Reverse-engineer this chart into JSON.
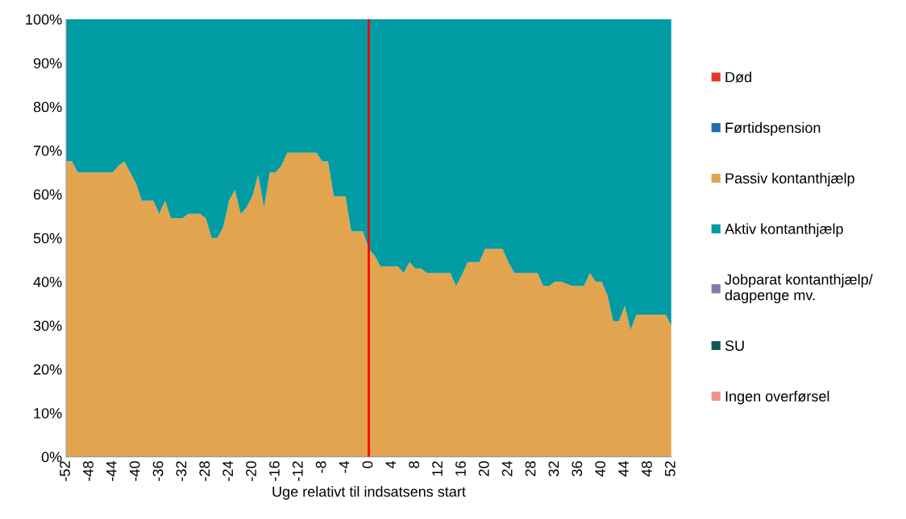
{
  "chart_data": {
    "type": "area",
    "stacked": true,
    "xlabel": "Uge relativt til indsatsens start",
    "x": [
      -52,
      -51,
      -50,
      -49,
      -48,
      -47,
      -46,
      -45,
      -44,
      -43,
      -42,
      -41,
      -40,
      -39,
      -38,
      -37,
      -36,
      -35,
      -34,
      -33,
      -32,
      -31,
      -30,
      -29,
      -28,
      -27,
      -26,
      -25,
      -24,
      -23,
      -22,
      -21,
      -20,
      -19,
      -18,
      -17,
      -16,
      -15,
      -14,
      -13,
      -12,
      -11,
      -10,
      -9,
      -8,
      -7,
      -6,
      -5,
      -4,
      -3,
      -2,
      -1,
      0,
      1,
      2,
      3,
      4,
      5,
      6,
      7,
      8,
      9,
      10,
      11,
      12,
      13,
      14,
      15,
      16,
      17,
      18,
      19,
      20,
      21,
      22,
      23,
      24,
      25,
      26,
      27,
      28,
      29,
      30,
      31,
      32,
      33,
      34,
      35,
      36,
      37,
      38,
      39,
      40,
      41,
      42,
      43,
      44,
      45,
      46,
      47,
      48,
      49,
      50,
      51,
      52
    ],
    "xlim": [
      -52,
      52
    ],
    "xticks": [
      -52,
      -48,
      -44,
      -40,
      -36,
      -32,
      -28,
      -24,
      -20,
      -16,
      -12,
      -8,
      -4,
      0,
      4,
      8,
      12,
      16,
      20,
      24,
      28,
      32,
      36,
      40,
      44,
      48,
      52
    ],
    "ylim": [
      0,
      100
    ],
    "yticks": [
      {
        "value": 0,
        "label": "0%"
      },
      {
        "value": 10,
        "label": "10%"
      },
      {
        "value": 20,
        "label": "20%"
      },
      {
        "value": 30,
        "label": "30%"
      },
      {
        "value": 40,
        "label": "40%"
      },
      {
        "value": 50,
        "label": "50%"
      },
      {
        "value": 60,
        "label": "60%"
      },
      {
        "value": 70,
        "label": "70%"
      },
      {
        "value": 80,
        "label": "80%"
      },
      {
        "value": 90,
        "label": "90%"
      },
      {
        "value": 100,
        "label": "100%"
      }
    ],
    "grid": false,
    "legend": "right",
    "ref_lines": [
      {
        "axis": "x",
        "value": 0,
        "color": "#ff0000"
      }
    ],
    "series": [
      {
        "name": "Død",
        "color": "#e8382b",
        "values": [
          null,
          null,
          null,
          null,
          null,
          null,
          null,
          null,
          null,
          null,
          null,
          null,
          null,
          null,
          null,
          null,
          null,
          null,
          null,
          null,
          null,
          null,
          null,
          null,
          null,
          null,
          null,
          null,
          null,
          null,
          null,
          null,
          null,
          null,
          null,
          null,
          null,
          null,
          null,
          null,
          null,
          null,
          null,
          null,
          null,
          null,
          null,
          null,
          null,
          null,
          null,
          null,
          null,
          null,
          null,
          null,
          null,
          null,
          null,
          null,
          null,
          null,
          null,
          null,
          null,
          null,
          null,
          null,
          null,
          null,
          null,
          null,
          null,
          null,
          null,
          null,
          null,
          null,
          null,
          null,
          null,
          null,
          null,
          null,
          null,
          null,
          null,
          null,
          null,
          null,
          null,
          null,
          null,
          null,
          null,
          null,
          null,
          null,
          null,
          null,
          null,
          null,
          null,
          null,
          null
        ]
      },
      {
        "name": "Førtidspension",
        "color": "#1f6eb5",
        "values": [
          null,
          null,
          null,
          null,
          null,
          null,
          null,
          null,
          null,
          null,
          null,
          null,
          null,
          null,
          null,
          null,
          null,
          null,
          null,
          null,
          null,
          null,
          null,
          null,
          null,
          null,
          null,
          null,
          null,
          null,
          null,
          null,
          null,
          null,
          null,
          null,
          null,
          null,
          null,
          null,
          null,
          null,
          null,
          null,
          null,
          null,
          null,
          null,
          null,
          null,
          null,
          null,
          null,
          null,
          null,
          null,
          null,
          null,
          null,
          null,
          null,
          null,
          null,
          null,
          null,
          null,
          null,
          null,
          null,
          null,
          null,
          null,
          null,
          null,
          null,
          null,
          null,
          null,
          null,
          null,
          null,
          null,
          null,
          null,
          null,
          null,
          null,
          null,
          null,
          null,
          null,
          null,
          null,
          null,
          null,
          null,
          null,
          null,
          null,
          null,
          null,
          null,
          null,
          null,
          null
        ]
      },
      {
        "name": "Passiv kontanthjælp",
        "color": "#e2a44e",
        "values": [
          67.5,
          67.5,
          65,
          65,
          65,
          65,
          65,
          65,
          65,
          66.5,
          67.5,
          65,
          62.5,
          58.5,
          58.5,
          58.5,
          55.5,
          58.5,
          54.5,
          54.5,
          54.5,
          55.5,
          55.5,
          55.5,
          54.5,
          50,
          50,
          52.5,
          58.5,
          61,
          55.5,
          57,
          59.5,
          64.5,
          57,
          65,
          65,
          66.5,
          69.5,
          69.5,
          69.5,
          69.5,
          69.5,
          69.5,
          67.5,
          67.5,
          59.5,
          59.5,
          59.5,
          51.5,
          51.5,
          51.5,
          47.5,
          46,
          43.5,
          43.5,
          43.5,
          43.5,
          42,
          44.5,
          43,
          43,
          42,
          42,
          42,
          42,
          42,
          39,
          41.5,
          44.5,
          44.5,
          44.5,
          47.5,
          47.5,
          47.5,
          47.5,
          44.5,
          42,
          42,
          42,
          42,
          42,
          39,
          39,
          40,
          40,
          39.5,
          39,
          39,
          39,
          42,
          40,
          40,
          37,
          31,
          31,
          34.5,
          29,
          32.5,
          32.5,
          32.5,
          32.5,
          32.5,
          32.5,
          30
        ]
      },
      {
        "name": "Aktiv kontanthjælp",
        "color": "#009ba3",
        "values": [
          32.5,
          32.5,
          35,
          35,
          35,
          35,
          35,
          35,
          35,
          33.5,
          32.5,
          35,
          37.5,
          41.5,
          41.5,
          41.5,
          44.5,
          41.5,
          45.5,
          45.5,
          45.5,
          44.5,
          44.5,
          44.5,
          45.5,
          50,
          50,
          47.5,
          41.5,
          39,
          44.5,
          43,
          40.5,
          35.5,
          43,
          35,
          35,
          33.5,
          30.5,
          30.5,
          30.5,
          30.5,
          30.5,
          30.5,
          32.5,
          32.5,
          40.5,
          40.5,
          40.5,
          48.5,
          48.5,
          48.5,
          52.5,
          54,
          56.5,
          56.5,
          56.5,
          56.5,
          58,
          55.5,
          57,
          57,
          58,
          58,
          58,
          58,
          58,
          61,
          58.5,
          55.5,
          55.5,
          55.5,
          52.5,
          52.5,
          52.5,
          52.5,
          55.5,
          58,
          58,
          58,
          58,
          58,
          61,
          61,
          60,
          60,
          60.5,
          61,
          61,
          61,
          58,
          60,
          60,
          63,
          69,
          69,
          65.5,
          71,
          67.5,
          67.5,
          67.5,
          67.5,
          67.5,
          67.5,
          70
        ]
      },
      {
        "name": "Jobparat kontanthjælp/\ndagpenge mv.",
        "color": "#8a78a8",
        "values": [
          null,
          null,
          null,
          null,
          null,
          null,
          null,
          null,
          null,
          null,
          null,
          null,
          null,
          null,
          null,
          null,
          null,
          null,
          null,
          null,
          null,
          null,
          null,
          null,
          null,
          null,
          null,
          null,
          null,
          null,
          null,
          null,
          null,
          null,
          null,
          null,
          null,
          null,
          null,
          null,
          null,
          null,
          null,
          null,
          null,
          null,
          null,
          null,
          null,
          null,
          null,
          null,
          null,
          null,
          null,
          null,
          null,
          null,
          null,
          null,
          null,
          null,
          null,
          null,
          null,
          null,
          null,
          null,
          null,
          null,
          null,
          null,
          null,
          null,
          null,
          null,
          null,
          null,
          null,
          null,
          null,
          null,
          null,
          null,
          null,
          null,
          null,
          null,
          null,
          null,
          null,
          null,
          null,
          null,
          null,
          null,
          null,
          null,
          null,
          null,
          null,
          null,
          null,
          null,
          null
        ]
      },
      {
        "name": "SU",
        "color": "#0b5a56",
        "values": [
          null,
          null,
          null,
          null,
          null,
          null,
          null,
          null,
          null,
          null,
          null,
          null,
          null,
          null,
          null,
          null,
          null,
          null,
          null,
          null,
          null,
          null,
          null,
          null,
          null,
          null,
          null,
          null,
          null,
          null,
          null,
          null,
          null,
          null,
          null,
          null,
          null,
          null,
          null,
          null,
          null,
          null,
          null,
          null,
          null,
          null,
          null,
          null,
          null,
          null,
          null,
          null,
          null,
          null,
          null,
          null,
          null,
          null,
          null,
          null,
          null,
          null,
          null,
          null,
          null,
          null,
          null,
          null,
          null,
          null,
          null,
          null,
          null,
          null,
          null,
          null,
          null,
          null,
          null,
          null,
          null,
          null,
          null,
          null,
          null,
          null,
          null,
          null,
          null,
          null,
          null,
          null,
          null,
          null,
          null,
          null,
          null,
          null,
          null,
          null,
          null,
          null,
          null,
          null,
          null
        ]
      },
      {
        "name": "Ingen overførsel",
        "color": "#f4908a",
        "values": [
          null,
          null,
          null,
          null,
          null,
          null,
          null,
          null,
          null,
          null,
          null,
          null,
          null,
          null,
          null,
          null,
          null,
          null,
          null,
          null,
          null,
          null,
          null,
          null,
          null,
          null,
          null,
          null,
          null,
          null,
          null,
          null,
          null,
          null,
          null,
          null,
          null,
          null,
          null,
          null,
          null,
          null,
          null,
          null,
          null,
          null,
          null,
          null,
          null,
          null,
          null,
          null,
          null,
          null,
          null,
          null,
          null,
          null,
          null,
          null,
          null,
          null,
          null,
          null,
          null,
          null,
          null,
          null,
          null,
          null,
          null,
          null,
          null,
          null,
          null,
          null,
          null,
          null,
          null,
          null,
          null,
          null,
          null,
          null,
          null,
          null,
          null,
          null,
          null,
          null,
          null,
          null,
          null,
          null,
          null,
          null,
          null,
          null,
          null,
          null,
          null,
          null,
          null,
          null,
          null
        ]
      }
    ]
  }
}
